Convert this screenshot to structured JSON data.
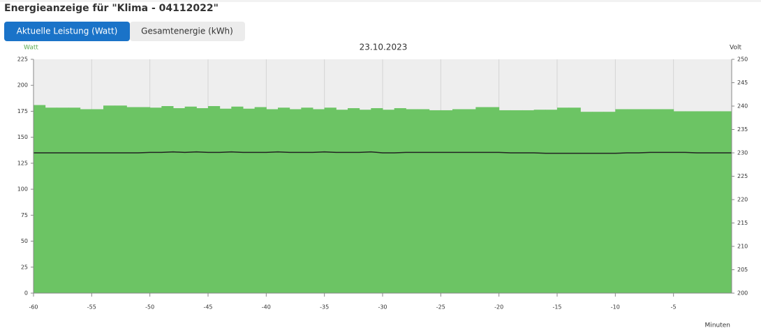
{
  "header": {
    "title": "Energieanzeige für \"Klima - 04112022\""
  },
  "tabs": [
    "Aktuelle Leistung (Watt)",
    "Gesamtenergie (kWh)"
  ],
  "chart_data": {
    "type": "step-area",
    "title": "23.10.2023",
    "y_label": "Watt",
    "y2_label": "Volt",
    "x_label": "Minuten",
    "x": [
      -60,
      -59,
      -58,
      -57,
      -56,
      -55,
      -54,
      -53,
      -52,
      -51,
      -50,
      -49,
      -48,
      -47,
      -46,
      -45,
      -44,
      -43,
      -42,
      -41,
      -40,
      -39,
      -38,
      -37,
      -36,
      -35,
      -34,
      -33,
      -32,
      -31,
      -30,
      -29,
      -28,
      -27,
      -26,
      -25,
      -24,
      -23,
      -22,
      -21,
      -20,
      -19,
      -18,
      -17,
      -16,
      -15,
      -14,
      -13,
      -12,
      -11,
      -10,
      -9,
      -8,
      -7,
      -6,
      -5,
      -4,
      -3,
      -2,
      -1,
      0
    ],
    "series": [
      {
        "name": "Watt",
        "color": "#6cc464",
        "values": [
          181,
          178.5,
          178.5,
          178.5,
          177,
          177,
          180.5,
          180.5,
          179,
          179,
          178.5,
          180,
          178,
          179.5,
          178,
          180,
          177.5,
          179.5,
          177.5,
          179,
          177,
          178.5,
          177,
          178.5,
          177,
          178.5,
          176.5,
          178,
          176.5,
          178,
          176.5,
          178,
          177,
          177,
          176,
          176,
          177,
          177,
          179,
          179,
          176,
          176,
          176,
          176.5,
          176.5,
          178.5,
          178.5,
          174.5,
          174.5,
          174.5,
          177,
          177,
          177,
          177,
          177,
          175,
          175,
          175,
          175,
          175,
          175
        ]
      },
      {
        "name": "Volt",
        "color": "#222222",
        "axis": "y2",
        "values": [
          230,
          230,
          230,
          230,
          230,
          230,
          230,
          230,
          230,
          230,
          230.1,
          230.1,
          230.2,
          230.1,
          230.2,
          230.1,
          230.1,
          230.2,
          230.1,
          230.1,
          230.1,
          230.2,
          230.1,
          230.1,
          230.1,
          230.2,
          230.1,
          230.1,
          230.1,
          230.2,
          230,
          230,
          230.1,
          230.1,
          230.1,
          230.1,
          230.1,
          230.1,
          230.1,
          230.1,
          230.1,
          230,
          230,
          230,
          229.9,
          229.9,
          229.9,
          229.9,
          229.9,
          229.9,
          229.9,
          230,
          230,
          230.1,
          230.1,
          230.1,
          230.1,
          230,
          230,
          230,
          230
        ]
      }
    ],
    "xlim": [
      -60,
      0
    ],
    "xticks": [
      -60,
      -55,
      -50,
      -45,
      -40,
      -35,
      -30,
      -25,
      -20,
      -15,
      -10,
      -5
    ],
    "ylim": [
      0,
      225
    ],
    "yticks": [
      0,
      25,
      50,
      75,
      100,
      125,
      150,
      175,
      200,
      225
    ],
    "y2lim": [
      200,
      250
    ],
    "y2ticks": [
      200,
      205,
      210,
      215,
      220,
      225,
      230,
      235,
      240,
      245,
      250
    ],
    "grid": true
  }
}
